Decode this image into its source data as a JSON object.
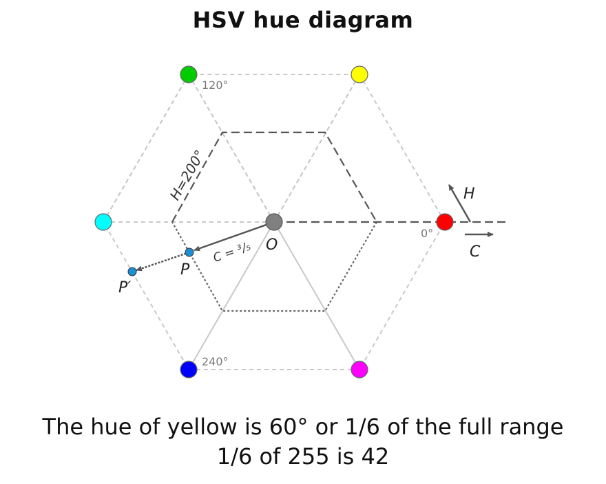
{
  "title": "HSV hue diagram",
  "diagram": {
    "angle_labels": {
      "deg0": "0°",
      "deg120": "120°",
      "deg240": "240°"
    },
    "hue_line_label": "H=200°",
    "chroma_label": "C = ³/₅",
    "origin_label": "O",
    "point_p": "P",
    "point_p_prime": "P′",
    "arrow_h": "H",
    "arrow_c": "C",
    "vertex_colors": {
      "red": "#ff0000",
      "yellow": "#ffff00",
      "green": "#00cc00",
      "cyan": "#00ffff",
      "blue": "#0000ff",
      "magenta": "#ff00ff",
      "origin": "#808080",
      "point": "#1a8fd6"
    }
  },
  "caption": {
    "line1": "The hue of yellow is 60° or 1/6 of the full range",
    "line2": "1/6 of 255 is 42"
  }
}
